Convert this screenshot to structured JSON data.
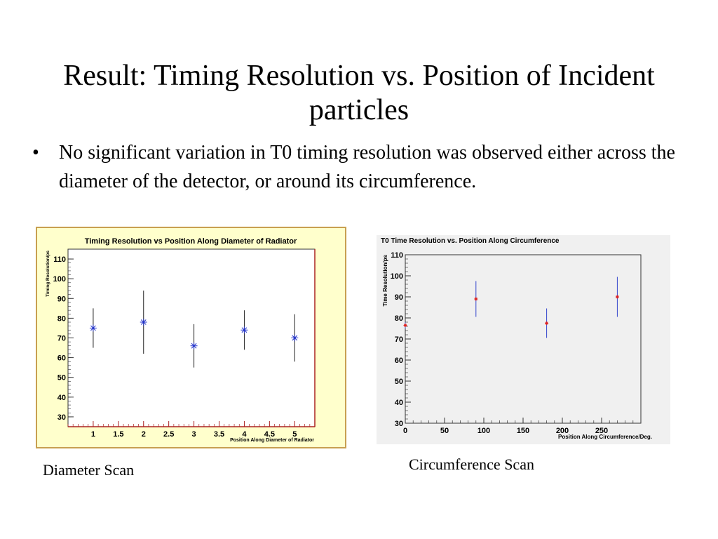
{
  "slide": {
    "title": "Result: Timing Resolution vs. Position of Incident particles",
    "bullet": "No significant variation in T0 timing resolution was observed either across the diameter of the detector, or around its circumference.",
    "caption_left": "Diameter Scan",
    "caption_right": "Circumference Scan"
  },
  "chart_data": [
    {
      "type": "scatter",
      "title": "Timing Resolution vs Position Along Diameter of Radiator",
      "xlabel": "Position Along Diameter of Radiator",
      "ylabel": "Timing Resolution/ps",
      "xlim": [
        0.5,
        5.4
      ],
      "ylim": [
        25,
        115
      ],
      "xticks": [
        1,
        1.5,
        2,
        2.5,
        3,
        3.5,
        4,
        4.5,
        5
      ],
      "xtick_labels": [
        "1",
        "1.5",
        "2",
        "2.5",
        "3",
        "3.5",
        "4",
        "4.5",
        "5"
      ],
      "yticks": [
        30,
        40,
        50,
        60,
        70,
        80,
        90,
        100,
        110
      ],
      "ytick_labels": [
        "30",
        "40",
        "50",
        "60",
        "70",
        "80",
        "90",
        "100",
        "110"
      ],
      "marker": "asterisk",
      "marker_color": "#2233cc",
      "bar_color": "#222222",
      "series": [
        {
          "x": [
            1,
            2,
            3,
            4,
            5
          ],
          "y": [
            75,
            78,
            66,
            74,
            70
          ],
          "err": [
            10,
            16,
            11,
            10,
            12
          ]
        }
      ]
    },
    {
      "type": "scatter",
      "title": "T0 Time Resolution vs. Position Along Circumference",
      "xlabel": "Position Along Circumference/Deg.",
      "ylabel": "Time Resolution/ps",
      "xlim": [
        0,
        300
      ],
      "ylim": [
        30,
        110
      ],
      "xticks": [
        0,
        50,
        100,
        150,
        200,
        250
      ],
      "xtick_labels": [
        "0",
        "50",
        "100",
        "150",
        "200",
        "250"
      ],
      "yticks": [
        30,
        40,
        50,
        60,
        70,
        80,
        90,
        100,
        110
      ],
      "ytick_labels": [
        "30",
        "40",
        "50",
        "60",
        "70",
        "80",
        "90",
        "100",
        "110"
      ],
      "marker": "star",
      "marker_color": "#dd2222",
      "bar_color": "#3344cc",
      "series": [
        {
          "x": [
            0,
            90,
            180,
            270
          ],
          "y": [
            76.5,
            89,
            77.5,
            90
          ],
          "err": [
            1.5,
            8.5,
            7,
            9.5
          ]
        }
      ]
    }
  ]
}
